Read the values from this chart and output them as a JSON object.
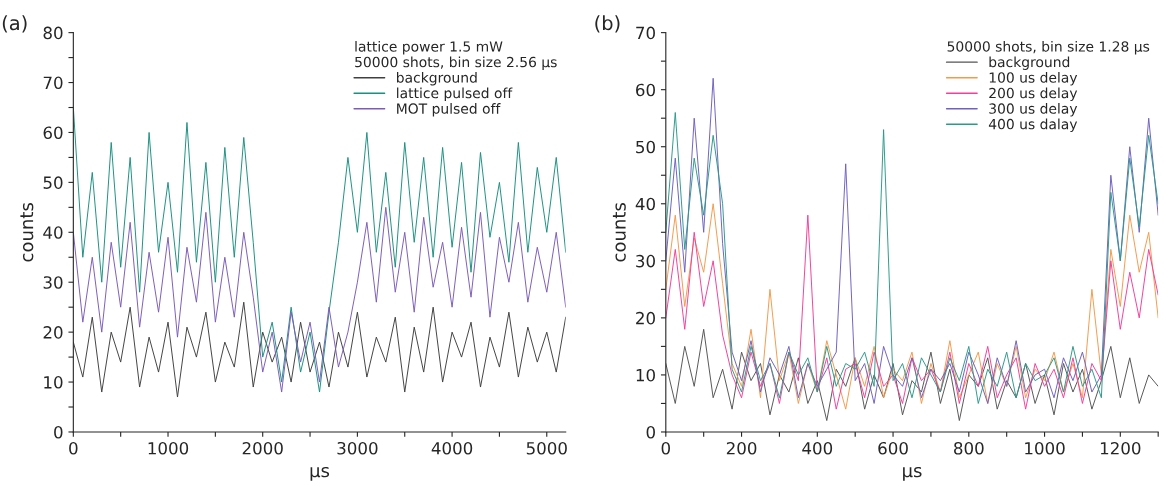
{
  "chart_data": [
    {
      "type": "line",
      "title": "(a)",
      "xlabel": "µs",
      "ylabel": "counts",
      "legend_title": "lattice power 1.5 mW\n50000 shots, bin size 2.56 μs",
      "legend": "top right",
      "grid": false,
      "xlim": [
        0,
        5200
      ],
      "ylim": [
        0,
        80
      ],
      "xticks": [
        0,
        {
          "value": 500,
          "label": null
        },
        1000,
        {
          "value": 1500,
          "label": null
        },
        2000,
        {
          "value": 2500,
          "label": null
        },
        3000,
        {
          "value": 3500,
          "label": null
        },
        4000,
        {
          "value": 4500,
          "label": null
        },
        5000
      ],
      "yticks": [
        0,
        {
          "value": 5,
          "label": null
        },
        10,
        {
          "value": 15,
          "label": null
        },
        20,
        {
          "value": 25,
          "label": null
        },
        30,
        {
          "value": 35,
          "label": null
        },
        40,
        {
          "value": 45,
          "label": null
        },
        50,
        {
          "value": 55,
          "label": null
        },
        60,
        {
          "value": 65,
          "label": null
        },
        70,
        {
          "value": 75,
          "label": null
        },
        80
      ],
      "x": [
        0,
        100,
        200,
        300,
        400,
        500,
        600,
        700,
        800,
        900,
        1000,
        1100,
        1200,
        1300,
        1400,
        1500,
        1600,
        1700,
        1800,
        1900,
        2000,
        2100,
        2200,
        2300,
        2400,
        2500,
        2600,
        2700,
        2800,
        2900,
        3000,
        3100,
        3200,
        3300,
        3400,
        3500,
        3600,
        3700,
        3800,
        3900,
        4000,
        4100,
        4200,
        4300,
        4400,
        4500,
        4600,
        4700,
        4800,
        4900,
        5000,
        5100,
        5200
      ],
      "series": [
        {
          "name": "background",
          "color": "#404040",
          "values": [
            18,
            11,
            23,
            8,
            20,
            14,
            25,
            9,
            19,
            12,
            22,
            7,
            21,
            15,
            24,
            10,
            18,
            13,
            26,
            9,
            20,
            14,
            19,
            10,
            22,
            12,
            18,
            9,
            20,
            13,
            24,
            11,
            19,
            14,
            23,
            8,
            21,
            12,
            25,
            10,
            20,
            15,
            22,
            9,
            19,
            13,
            24,
            11,
            21,
            14,
            20,
            12,
            23
          ]
        },
        {
          "name": "lattice pulsed off",
          "color": "#1a9080",
          "values": [
            65,
            35,
            52,
            30,
            58,
            33,
            55,
            28,
            60,
            36,
            50,
            32,
            62,
            34,
            54,
            30,
            57,
            35,
            59,
            38,
            15,
            22,
            10,
            25,
            12,
            20,
            8,
            24,
            38,
            55,
            40,
            60,
            36,
            52,
            33,
            58,
            38,
            55,
            35,
            57,
            37,
            54,
            32,
            56,
            39,
            50,
            34,
            58,
            36,
            53,
            40,
            55,
            36
          ]
        },
        {
          "name": "MOT pulsed off",
          "color": "#7b5cb8",
          "values": [
            40,
            22,
            35,
            20,
            38,
            25,
            42,
            21,
            36,
            24,
            39,
            19,
            37,
            26,
            44,
            22,
            35,
            23,
            40,
            27,
            12,
            20,
            8,
            24,
            14,
            22,
            10,
            25,
            13,
            20,
            30,
            42,
            26,
            45,
            28,
            40,
            24,
            43,
            29,
            38,
            25,
            41,
            27,
            44,
            23,
            39,
            30,
            42,
            26,
            37,
            28,
            40,
            25
          ]
        }
      ]
    },
    {
      "type": "line",
      "title": "(b)",
      "xlabel": "µs",
      "ylabel": "counts",
      "legend_title": "50000 shots, bin size 1.28 μs",
      "legend": "top right",
      "grid": false,
      "xlim": [
        0,
        1300
      ],
      "ylim": [
        0,
        70
      ],
      "xticks": [
        0,
        {
          "value": 100,
          "label": null
        },
        200,
        {
          "value": 300,
          "label": null
        },
        400,
        {
          "value": 500,
          "label": null
        },
        600,
        {
          "value": 700,
          "label": null
        },
        800,
        {
          "value": 900,
          "label": null
        },
        1000,
        {
          "value": 1100,
          "label": null
        },
        1200,
        {
          "value": 1300,
          "label": null
        }
      ],
      "yticks": [
        0,
        {
          "value": 5,
          "label": null
        },
        10,
        {
          "value": 15,
          "label": null
        },
        20,
        {
          "value": 25,
          "label": null
        },
        30,
        {
          "value": 35,
          "label": null
        },
        40,
        {
          "value": 45,
          "label": null
        },
        50,
        {
          "value": 55,
          "label": null
        },
        60,
        {
          "value": 65,
          "label": null
        },
        70
      ],
      "x": [
        0,
        25,
        50,
        75,
        100,
        125,
        150,
        175,
        200,
        225,
        250,
        275,
        300,
        325,
        350,
        375,
        400,
        425,
        450,
        475,
        500,
        525,
        550,
        575,
        600,
        625,
        650,
        675,
        700,
        725,
        750,
        775,
        800,
        825,
        850,
        875,
        900,
        925,
        950,
        975,
        1000,
        1025,
        1050,
        1075,
        1100,
        1125,
        1150,
        1175,
        1200,
        1225,
        1250,
        1275,
        1300
      ],
      "series": [
        {
          "name": "background",
          "color": "#555555",
          "values": [
            12,
            5,
            15,
            8,
            18,
            6,
            11,
            4,
            14,
            9,
            12,
            3,
            10,
            7,
            13,
            5,
            9,
            2,
            11,
            8,
            13,
            4,
            10,
            6,
            12,
            3,
            9,
            7,
            14,
            5,
            11,
            2,
            10,
            8,
            13,
            4,
            9,
            6,
            12,
            5,
            10,
            3,
            12,
            7,
            11,
            4,
            9,
            15,
            6,
            13,
            5,
            10,
            8
          ]
        },
        {
          "name": "100 us delay",
          "color": "#f39a4a",
          "values": [
            25,
            38,
            22,
            34,
            28,
            40,
            26,
            12,
            8,
            18,
            6,
            25,
            9,
            14,
            5,
            12,
            7,
            16,
            10,
            4,
            13,
            8,
            15,
            6,
            11,
            9,
            14,
            5,
            12,
            7,
            16,
            6,
            10,
            14,
            5,
            12,
            8,
            15,
            6,
            11,
            9,
            14,
            7,
            12,
            6,
            25,
            10,
            32,
            22,
            38,
            28,
            35,
            20
          ]
        },
        {
          "name": "200 us delay",
          "color": "#f0409a",
          "values": [
            20,
            32,
            18,
            35,
            22,
            30,
            17,
            10,
            6,
            14,
            8,
            12,
            5,
            14,
            9,
            38,
            7,
            13,
            4,
            11,
            12,
            6,
            14,
            8,
            10,
            5,
            13,
            9,
            11,
            7,
            14,
            5,
            12,
            8,
            15,
            6,
            10,
            13,
            4,
            12,
            8,
            11,
            6,
            13,
            5,
            12,
            9,
            30,
            18,
            28,
            20,
            32,
            24
          ]
        },
        {
          "name": "300 us delay",
          "color": "#7060c0",
          "values": [
            30,
            48,
            28,
            55,
            35,
            62,
            33,
            14,
            9,
            16,
            7,
            13,
            10,
            15,
            6,
            12,
            8,
            11,
            14,
            47,
            9,
            12,
            5,
            15,
            10,
            8,
            13,
            6,
            11,
            9,
            12,
            7,
            14,
            10,
            5,
            13,
            8,
            16,
            7,
            10,
            11,
            6,
            13,
            9,
            14,
            7,
            10,
            45,
            30,
            50,
            35,
            55,
            38
          ]
        },
        {
          "name": "400 us dalay",
          "color": "#2a9a8a",
          "values": [
            35,
            56,
            32,
            48,
            38,
            52,
            40,
            11,
            7,
            15,
            9,
            12,
            6,
            14,
            10,
            13,
            7,
            15,
            8,
            12,
            11,
            14,
            8,
            53,
            9,
            12,
            6,
            13,
            10,
            7,
            13,
            9,
            15,
            5,
            11,
            8,
            14,
            6,
            12,
            9,
            10,
            13,
            7,
            15,
            8,
            11,
            6,
            42,
            30,
            48,
            36,
            52,
            40
          ]
        }
      ]
    }
  ]
}
